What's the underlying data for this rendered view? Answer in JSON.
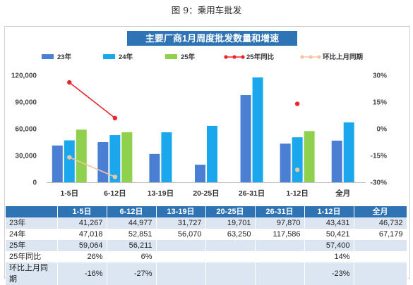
{
  "figure_caption": "图 9：乘用车批发",
  "colors": {
    "title_bg": "#2e74b5",
    "s23": "#4a7fd4",
    "s24": "#1aa7ec",
    "s25": "#8fd14f",
    "yoy": "#e8262b",
    "mom": "#f2c5a4",
    "header_bg": "#2e74b5",
    "band": "#dce6f2"
  },
  "chart_data": {
    "type": "bar",
    "title": "主要厂商1月周度批发数量和增速",
    "categories": [
      "1-5日",
      "6-12日",
      "13-19日",
      "20-25日",
      "26-31日",
      "1-12日",
      "全月"
    ],
    "series": [
      {
        "name": "23年",
        "values": [
          41267,
          44977,
          31727,
          19701,
          97870,
          43431,
          46732
        ]
      },
      {
        "name": "24年",
        "values": [
          47018,
          52851,
          56070,
          63250,
          117586,
          50421,
          67179
        ]
      },
      {
        "name": "25年",
        "values": [
          59064,
          56211,
          null,
          null,
          null,
          57400,
          null
        ]
      }
    ],
    "line_series": [
      {
        "name": "25年同比",
        "axis": "right",
        "values": [
          26,
          6,
          null,
          null,
          null,
          14,
          null
        ]
      },
      {
        "name": "环比上月同期",
        "axis": "right",
        "values": [
          -16,
          -27,
          null,
          null,
          null,
          -23,
          null
        ]
      }
    ],
    "left_axis": {
      "ylim": [
        0,
        120000
      ],
      "ticks": [
        "0",
        "30,000",
        "60,000",
        "90,000",
        "120,000"
      ]
    },
    "right_axis": {
      "ylim": [
        -30,
        30
      ],
      "ticks": [
        "-30%",
        "-15%",
        "0%",
        "15%",
        "30%"
      ]
    },
    "legend": "top",
    "grid": false
  },
  "table": {
    "headers": [
      "",
      "1-5日",
      "6-12日",
      "13-19日",
      "20-25日",
      "26-31日",
      "1-12日",
      "全月"
    ],
    "rows": [
      [
        "23年",
        "41,267",
        "44,977",
        "31,727",
        "19,701",
        "97,870",
        "43,431",
        "46,732"
      ],
      [
        "24年",
        "47,018",
        "52,851",
        "56,070",
        "63,250",
        "117,586",
        "50,421",
        "67,179"
      ],
      [
        "25年",
        "59,064",
        "56,211",
        "",
        "",
        "",
        "57,400",
        ""
      ],
      [
        "25年同比",
        "26%",
        "6%",
        "",
        "",
        "",
        "14%",
        ""
      ],
      [
        "环比上月同期",
        "-16%",
        "-27%",
        "",
        "",
        "",
        "-23%",
        ""
      ]
    ]
  }
}
